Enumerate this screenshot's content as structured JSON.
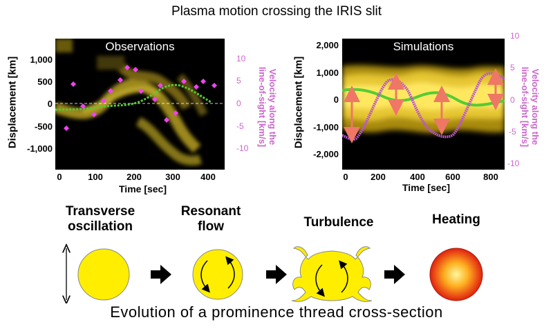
{
  "title": "Plasma motion crossing the IRIS slit",
  "observations": {
    "panel_title": "Observations",
    "y_axis_label": "Displacement [km]",
    "y_ticks": [
      "1,000",
      "500",
      "0",
      "-500",
      "-1,000"
    ],
    "right_axis_label_line1": "Velocity along the",
    "right_axis_label_line2": "line-of-sight [km/s]",
    "right_ticks": [
      "10",
      "5",
      "0",
      "-5",
      "-10"
    ],
    "x_axis_label": "Time [sec]",
    "x_ticks": [
      "0",
      "100",
      "200",
      "300",
      "400"
    ]
  },
  "simulations": {
    "panel_title": "Simulations",
    "y_axis_label": "Displacement [km]",
    "y_ticks": [
      "2,000",
      "1,000",
      "0",
      "-1,000",
      "-2,000"
    ],
    "right_axis_label_line1": "Velocity along the",
    "right_axis_label_line2": "line-of-sight [km/s]",
    "right_ticks": [
      "10",
      "5",
      "0",
      "-5",
      "-10"
    ],
    "x_axis_label": "Time [sec]",
    "x_ticks": [
      "0",
      "200",
      "400",
      "600",
      "800"
    ]
  },
  "stages": [
    {
      "line1": "Transverse",
      "line2": "oscillation"
    },
    {
      "line1": "Resonant",
      "line2": "flow"
    },
    {
      "line1": "Turbulence",
      "line2": ""
    },
    {
      "line1": "Heating",
      "line2": ""
    }
  ],
  "caption": "Evolution of a prominence thread cross-section",
  "colors": {
    "thread_yellow": "#ffee00",
    "velocity_magenta": "#cc66cc",
    "displacement_green": "#55cc33",
    "arrow_orange": "#ee7766"
  }
}
